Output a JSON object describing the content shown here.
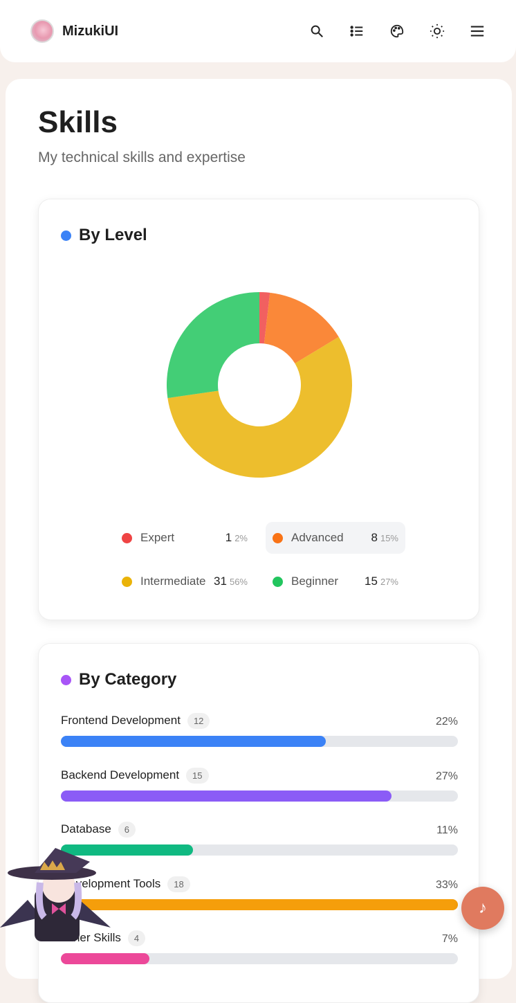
{
  "nav": {
    "brand": "MizukiUI",
    "icons": [
      "search-icon",
      "list-icon",
      "palette-icon",
      "sun-icon",
      "menu-icon"
    ]
  },
  "page": {
    "title": "Skills",
    "subtitle": "My technical skills and expertise"
  },
  "by_level": {
    "title": "By Level",
    "dot_color": "#3b82f6",
    "items": [
      {
        "label": "Expert",
        "count": "1",
        "pct": "2%",
        "color": "#ef4444",
        "value": 1
      },
      {
        "label": "Advanced",
        "count": "8",
        "pct": "15%",
        "color": "#f97316",
        "value": 8
      },
      {
        "label": "Intermediate",
        "count": "31",
        "pct": "56%",
        "color": "#eab308",
        "value": 31
      },
      {
        "label": "Beginner",
        "count": "15",
        "pct": "27%",
        "color": "#22c55e",
        "value": 15
      }
    ]
  },
  "by_category": {
    "title": "By Category",
    "dot_color": "#a855f7",
    "items": [
      {
        "label": "Frontend Development",
        "count": "12",
        "pct": "22%",
        "color": "#3b82f6",
        "value": 12
      },
      {
        "label": "Backend Development",
        "count": "15",
        "pct": "27%",
        "color": "#8b5cf6",
        "value": 15
      },
      {
        "label": "Database",
        "count": "6",
        "pct": "11%",
        "color": "#10b981",
        "value": 6
      },
      {
        "label": "Development Tools",
        "count": "18",
        "pct": "33%",
        "color": "#f59e0b",
        "value": 18
      },
      {
        "label": "Other Skills",
        "count": "4",
        "pct": "7%",
        "color": "#ec4899",
        "value": 4
      }
    ]
  },
  "fab": {
    "icon": "music-note-icon",
    "color": "#e07a5f"
  }
}
